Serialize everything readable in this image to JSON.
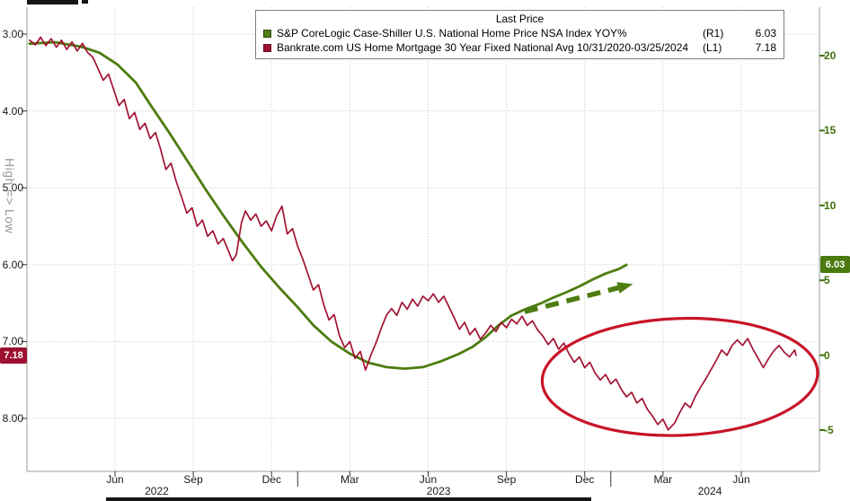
{
  "legend": {
    "title": "Last Price",
    "series": [
      {
        "label": "S&P CoreLogic Case-Shiller U.S. National Home Price NSA Index YOY%",
        "tag": "(R1)",
        "value": "6.03",
        "color": "#4d7c10"
      },
      {
        "label": "Bankrate.com US Home Mortgage 30 Year Fixed National Avg 10/31/2020-03/25/2024",
        "tag": "(L1)",
        "value": "7.18",
        "color": "#9e1130"
      }
    ]
  },
  "left_axis": {
    "label": "High => Low",
    "badge": {
      "value": "7.18",
      "v": 7.18,
      "color": "#9e1130"
    },
    "ticks": [
      {
        "v": 3,
        "label": "3.00"
      },
      {
        "v": 4,
        "label": "4.00"
      },
      {
        "v": 5,
        "label": "5.00"
      },
      {
        "v": 6,
        "label": "6.00"
      },
      {
        "v": 7,
        "label": "7.00"
      },
      {
        "v": 8,
        "label": "8.00"
      }
    ]
  },
  "right_axis": {
    "badge": {
      "value": "6.03",
      "v": 6.03,
      "color": "#4a7a10"
    },
    "ticks": [
      {
        "v": 20,
        "label": "20"
      },
      {
        "v": 15,
        "label": "15"
      },
      {
        "v": 10,
        "label": "10"
      },
      {
        "v": 5,
        "label": "5"
      },
      {
        "v": 0,
        "label": "0"
      },
      {
        "v": -5,
        "label": "-5"
      }
    ]
  },
  "x_axis": {
    "months": [
      {
        "t": 5,
        "label": "Jun"
      },
      {
        "t": 8,
        "label": "Sep"
      },
      {
        "t": 11,
        "label": "Dec"
      },
      {
        "t": 14,
        "label": "Mar"
      },
      {
        "t": 17,
        "label": "Jun"
      },
      {
        "t": 20,
        "label": "Sep"
      },
      {
        "t": 23,
        "label": "Dec"
      },
      {
        "t": 26,
        "label": "Mar"
      },
      {
        "t": 29,
        "label": "Jun"
      }
    ],
    "years": [
      {
        "t": 6.6,
        "label": "2022"
      },
      {
        "t": 17.4,
        "label": "2023"
      },
      {
        "t": 27.8,
        "label": "2024"
      }
    ],
    "year_separators": [
      12,
      24
    ]
  },
  "chart_data": {
    "type": "line",
    "title": "Last Price",
    "x_unit": "months since 2022-01 (t=5 at Jun-2022 tick)",
    "left_axis": {
      "label": "High => Low",
      "min": 3,
      "max": 8,
      "inverted": true
    },
    "right_axis": {
      "min": -5,
      "max": 20
    },
    "grid": true,
    "legend_position": "top",
    "series": [
      {
        "name": "S&P CoreLogic Case-Shiller U.S. National Home Price NSA Index YOY% (R1)",
        "axis": "right",
        "color": "#4d7c10",
        "width": 2.8,
        "last": 6.03,
        "points": [
          [
            1.73,
            20.8
          ],
          [
            2.7,
            20.9
          ],
          [
            3.7,
            20.6
          ],
          [
            4.4,
            20.2
          ],
          [
            5.1,
            19.4
          ],
          [
            5.8,
            18.2
          ],
          [
            6.4,
            16.6
          ],
          [
            7.1,
            14.8
          ],
          [
            7.8,
            12.9
          ],
          [
            8.5,
            11.0
          ],
          [
            9.2,
            9.2
          ],
          [
            9.9,
            7.5
          ],
          [
            10.6,
            5.9
          ],
          [
            11.3,
            4.5
          ],
          [
            12.0,
            3.2
          ],
          [
            12.6,
            2.0
          ],
          [
            13.3,
            0.9
          ],
          [
            14.0,
            0.1
          ],
          [
            14.7,
            -0.5
          ],
          [
            15.4,
            -0.8
          ],
          [
            16.1,
            -0.9
          ],
          [
            16.8,
            -0.8
          ],
          [
            17.5,
            -0.4
          ],
          [
            18.2,
            0.1
          ],
          [
            18.7,
            0.55
          ],
          [
            19.2,
            1.2
          ],
          [
            19.7,
            2.0
          ],
          [
            20.2,
            2.65
          ],
          [
            20.7,
            3.05
          ],
          [
            21.3,
            3.45
          ],
          [
            21.8,
            3.85
          ],
          [
            22.3,
            4.2
          ],
          [
            22.8,
            4.6
          ],
          [
            23.3,
            5.05
          ],
          [
            23.8,
            5.45
          ],
          [
            24.3,
            5.75
          ],
          [
            24.6,
            6.03
          ]
        ]
      },
      {
        "name": "Bankrate.com US Home Mortgage 30 Year Fixed National Avg (L1)",
        "axis": "left",
        "color": "#a21232",
        "width": 1.7,
        "last": 7.18,
        "points": [
          [
            1.73,
            3.08
          ],
          [
            1.95,
            3.14
          ],
          [
            2.15,
            3.04
          ],
          [
            2.35,
            3.15
          ],
          [
            2.55,
            3.06
          ],
          [
            2.75,
            3.17
          ],
          [
            2.95,
            3.08
          ],
          [
            3.15,
            3.2
          ],
          [
            3.35,
            3.1
          ],
          [
            3.55,
            3.22
          ],
          [
            3.75,
            3.12
          ],
          [
            3.95,
            3.24
          ],
          [
            4.15,
            3.3
          ],
          [
            4.35,
            3.45
          ],
          [
            4.55,
            3.6
          ],
          [
            4.75,
            3.52
          ],
          [
            4.95,
            3.72
          ],
          [
            5.15,
            3.93
          ],
          [
            5.35,
            3.85
          ],
          [
            5.55,
            4.1
          ],
          [
            5.75,
            4.02
          ],
          [
            5.95,
            4.24
          ],
          [
            6.15,
            4.16
          ],
          [
            6.35,
            4.36
          ],
          [
            6.55,
            4.28
          ],
          [
            6.75,
            4.5
          ],
          [
            6.95,
            4.76
          ],
          [
            7.15,
            4.68
          ],
          [
            7.35,
            4.92
          ],
          [
            7.55,
            5.12
          ],
          [
            7.75,
            5.33
          ],
          [
            7.95,
            5.26
          ],
          [
            8.15,
            5.5
          ],
          [
            8.35,
            5.42
          ],
          [
            8.55,
            5.63
          ],
          [
            8.75,
            5.56
          ],
          [
            8.95,
            5.73
          ],
          [
            9.15,
            5.66
          ],
          [
            9.35,
            5.82
          ],
          [
            9.5,
            5.95
          ],
          [
            9.65,
            5.87
          ],
          [
            9.85,
            5.45
          ],
          [
            10.0,
            5.3
          ],
          [
            10.2,
            5.42
          ],
          [
            10.4,
            5.34
          ],
          [
            10.6,
            5.5
          ],
          [
            10.8,
            5.43
          ],
          [
            11.0,
            5.56
          ],
          [
            11.2,
            5.36
          ],
          [
            11.4,
            5.24
          ],
          [
            11.6,
            5.6
          ],
          [
            11.8,
            5.53
          ],
          [
            12.0,
            5.76
          ],
          [
            12.2,
            5.93
          ],
          [
            12.4,
            6.13
          ],
          [
            12.6,
            6.33
          ],
          [
            12.8,
            6.26
          ],
          [
            13.0,
            6.52
          ],
          [
            13.2,
            6.72
          ],
          [
            13.4,
            6.65
          ],
          [
            13.6,
            6.92
          ],
          [
            13.8,
            7.08
          ],
          [
            14.0,
            7.0
          ],
          [
            14.2,
            7.22
          ],
          [
            14.4,
            7.13
          ],
          [
            14.6,
            7.37
          ],
          [
            14.8,
            7.18
          ],
          [
            15.0,
            7.02
          ],
          [
            15.2,
            6.83
          ],
          [
            15.4,
            6.66
          ],
          [
            15.6,
            6.57
          ],
          [
            15.8,
            6.66
          ],
          [
            16.0,
            6.49
          ],
          [
            16.2,
            6.58
          ],
          [
            16.4,
            6.45
          ],
          [
            16.6,
            6.54
          ],
          [
            16.8,
            6.41
          ],
          [
            17.0,
            6.47
          ],
          [
            17.2,
            6.38
          ],
          [
            17.4,
            6.49
          ],
          [
            17.6,
            6.41
          ],
          [
            17.8,
            6.55
          ],
          [
            18.0,
            6.69
          ],
          [
            18.2,
            6.84
          ],
          [
            18.4,
            6.75
          ],
          [
            18.6,
            6.91
          ],
          [
            18.8,
            6.83
          ],
          [
            19.0,
            6.97
          ],
          [
            19.2,
            6.89
          ],
          [
            19.4,
            6.79
          ],
          [
            19.6,
            6.87
          ],
          [
            19.8,
            6.75
          ],
          [
            20.0,
            6.82
          ],
          [
            20.2,
            6.71
          ],
          [
            20.4,
            6.77
          ],
          [
            20.6,
            6.67
          ],
          [
            20.8,
            6.79
          ],
          [
            21.0,
            6.73
          ],
          [
            21.2,
            6.85
          ],
          [
            21.4,
            6.93
          ],
          [
            21.6,
            7.04
          ],
          [
            21.8,
            6.96
          ],
          [
            22.0,
            7.1
          ],
          [
            22.2,
            7.02
          ],
          [
            22.4,
            7.16
          ],
          [
            22.6,
            7.27
          ],
          [
            22.8,
            7.2
          ],
          [
            23.0,
            7.34
          ],
          [
            23.2,
            7.27
          ],
          [
            23.4,
            7.41
          ],
          [
            23.6,
            7.5
          ],
          [
            23.8,
            7.43
          ],
          [
            24.0,
            7.55
          ],
          [
            24.2,
            7.49
          ],
          [
            24.4,
            7.62
          ],
          [
            24.6,
            7.72
          ],
          [
            24.8,
            7.66
          ],
          [
            25.0,
            7.8
          ],
          [
            25.2,
            7.74
          ],
          [
            25.4,
            7.88
          ],
          [
            25.6,
            7.97
          ],
          [
            25.8,
            8.08
          ],
          [
            26.0,
            8.01
          ],
          [
            26.2,
            8.15
          ],
          [
            26.45,
            8.06
          ],
          [
            26.65,
            7.92
          ],
          [
            26.85,
            7.8
          ],
          [
            27.05,
            7.86
          ],
          [
            27.25,
            7.71
          ],
          [
            27.45,
            7.59
          ],
          [
            27.65,
            7.48
          ],
          [
            27.85,
            7.36
          ],
          [
            28.05,
            7.24
          ],
          [
            28.25,
            7.11
          ],
          [
            28.45,
            7.18
          ],
          [
            28.65,
            7.05
          ],
          [
            28.85,
            6.98
          ],
          [
            29.05,
            7.05
          ],
          [
            29.25,
            6.96
          ],
          [
            29.45,
            7.1
          ],
          [
            29.65,
            7.22
          ],
          [
            29.85,
            7.34
          ],
          [
            30.05,
            7.22
          ],
          [
            30.25,
            7.12
          ],
          [
            30.45,
            7.05
          ],
          [
            30.65,
            7.14
          ],
          [
            30.85,
            7.2
          ],
          [
            31.05,
            7.11
          ],
          [
            31.1,
            7.18
          ]
        ]
      }
    ],
    "annotations": {
      "dashed_arrow": {
        "axis": "right",
        "from": [
          20.7,
          2.9
        ],
        "to": [
          24.85,
          4.75
        ],
        "color": "#4d7c10"
      },
      "ellipse": {
        "axis": "left",
        "t": 26.65,
        "v": 7.46,
        "t_radius": 5.28,
        "v_radius": 0.76,
        "color": "#c81428"
      }
    }
  }
}
